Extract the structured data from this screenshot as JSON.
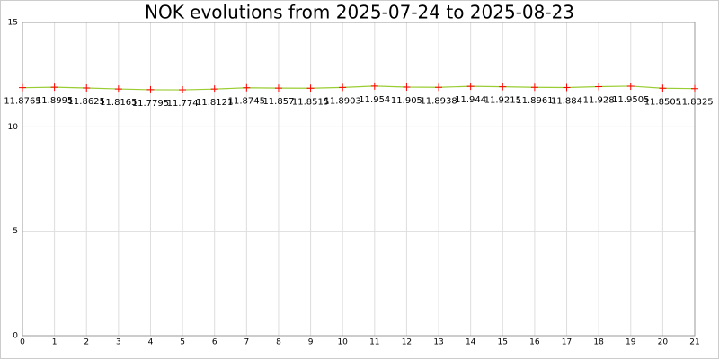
{
  "chart_data": {
    "type": "line",
    "title": "NOK evolutions from 2025-07-24 to 2025-08-23",
    "x": [
      0,
      1,
      2,
      3,
      4,
      5,
      6,
      7,
      8,
      9,
      10,
      11,
      12,
      13,
      14,
      15,
      16,
      17,
      18,
      19,
      20,
      21
    ],
    "values": [
      11.8765,
      11.8995,
      11.8625,
      11.8165,
      11.7795,
      11.774,
      11.8121,
      11.8745,
      11.857,
      11.8515,
      11.8903,
      11.954,
      11.905,
      11.8938,
      11.944,
      11.9215,
      11.8961,
      11.884,
      11.928,
      11.9505,
      11.8505,
      11.8325
    ],
    "color": "#9acd32",
    "marker_color": "#ff0000",
    "xlim": [
      0,
      21
    ],
    "xticks": [
      0,
      1,
      2,
      3,
      4,
      5,
      6,
      7,
      8,
      9,
      10,
      11,
      12,
      13,
      14,
      15,
      16,
      17,
      18,
      19,
      20,
      21
    ],
    "ylim": [
      0,
      15
    ],
    "yticks": [
      0,
      5,
      10,
      15
    ],
    "grid": true
  }
}
